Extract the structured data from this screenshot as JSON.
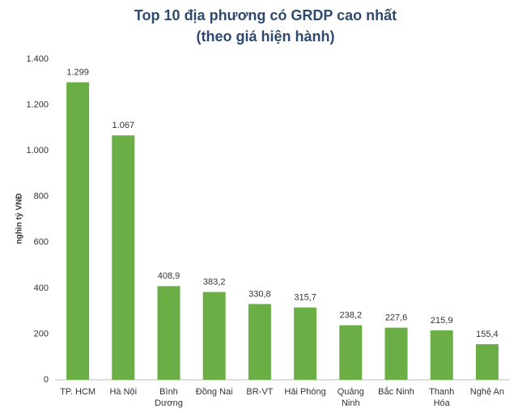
{
  "chart_data": {
    "type": "bar",
    "title": "Top 10 địa phương có GRDP cao nhất",
    "subtitle": "(theo giá hiện hành)",
    "y_label": "nghìn tỷ VNĐ",
    "categories": [
      "TP. HCM",
      "Hà Nội",
      "Bình Dương",
      "Đồng Nai",
      "BR-VT",
      "Hải Phòng",
      "Quảng Ninh",
      "Bắc Ninh",
      "Thanh Hóa",
      "Nghệ An"
    ],
    "values": [
      1299,
      1067,
      408.9,
      383.2,
      330.8,
      315.7,
      238.2,
      227.6,
      215.9,
      155.4
    ],
    "value_labels": [
      "1.299",
      "1.067",
      "408,9",
      "383,2",
      "330,8",
      "315,7",
      "238,2",
      "227,6",
      "215,9",
      "155,4"
    ],
    "color": "#6aae45",
    "ylim": [
      0,
      1400
    ],
    "yticks": [
      0,
      200,
      400,
      600,
      800,
      {
        "value": 1000,
        "label": "1.000"
      },
      {
        "value": 1200,
        "label": "1.200"
      },
      {
        "value": 1400,
        "label": "1.400"
      }
    ],
    "grid": false
  }
}
